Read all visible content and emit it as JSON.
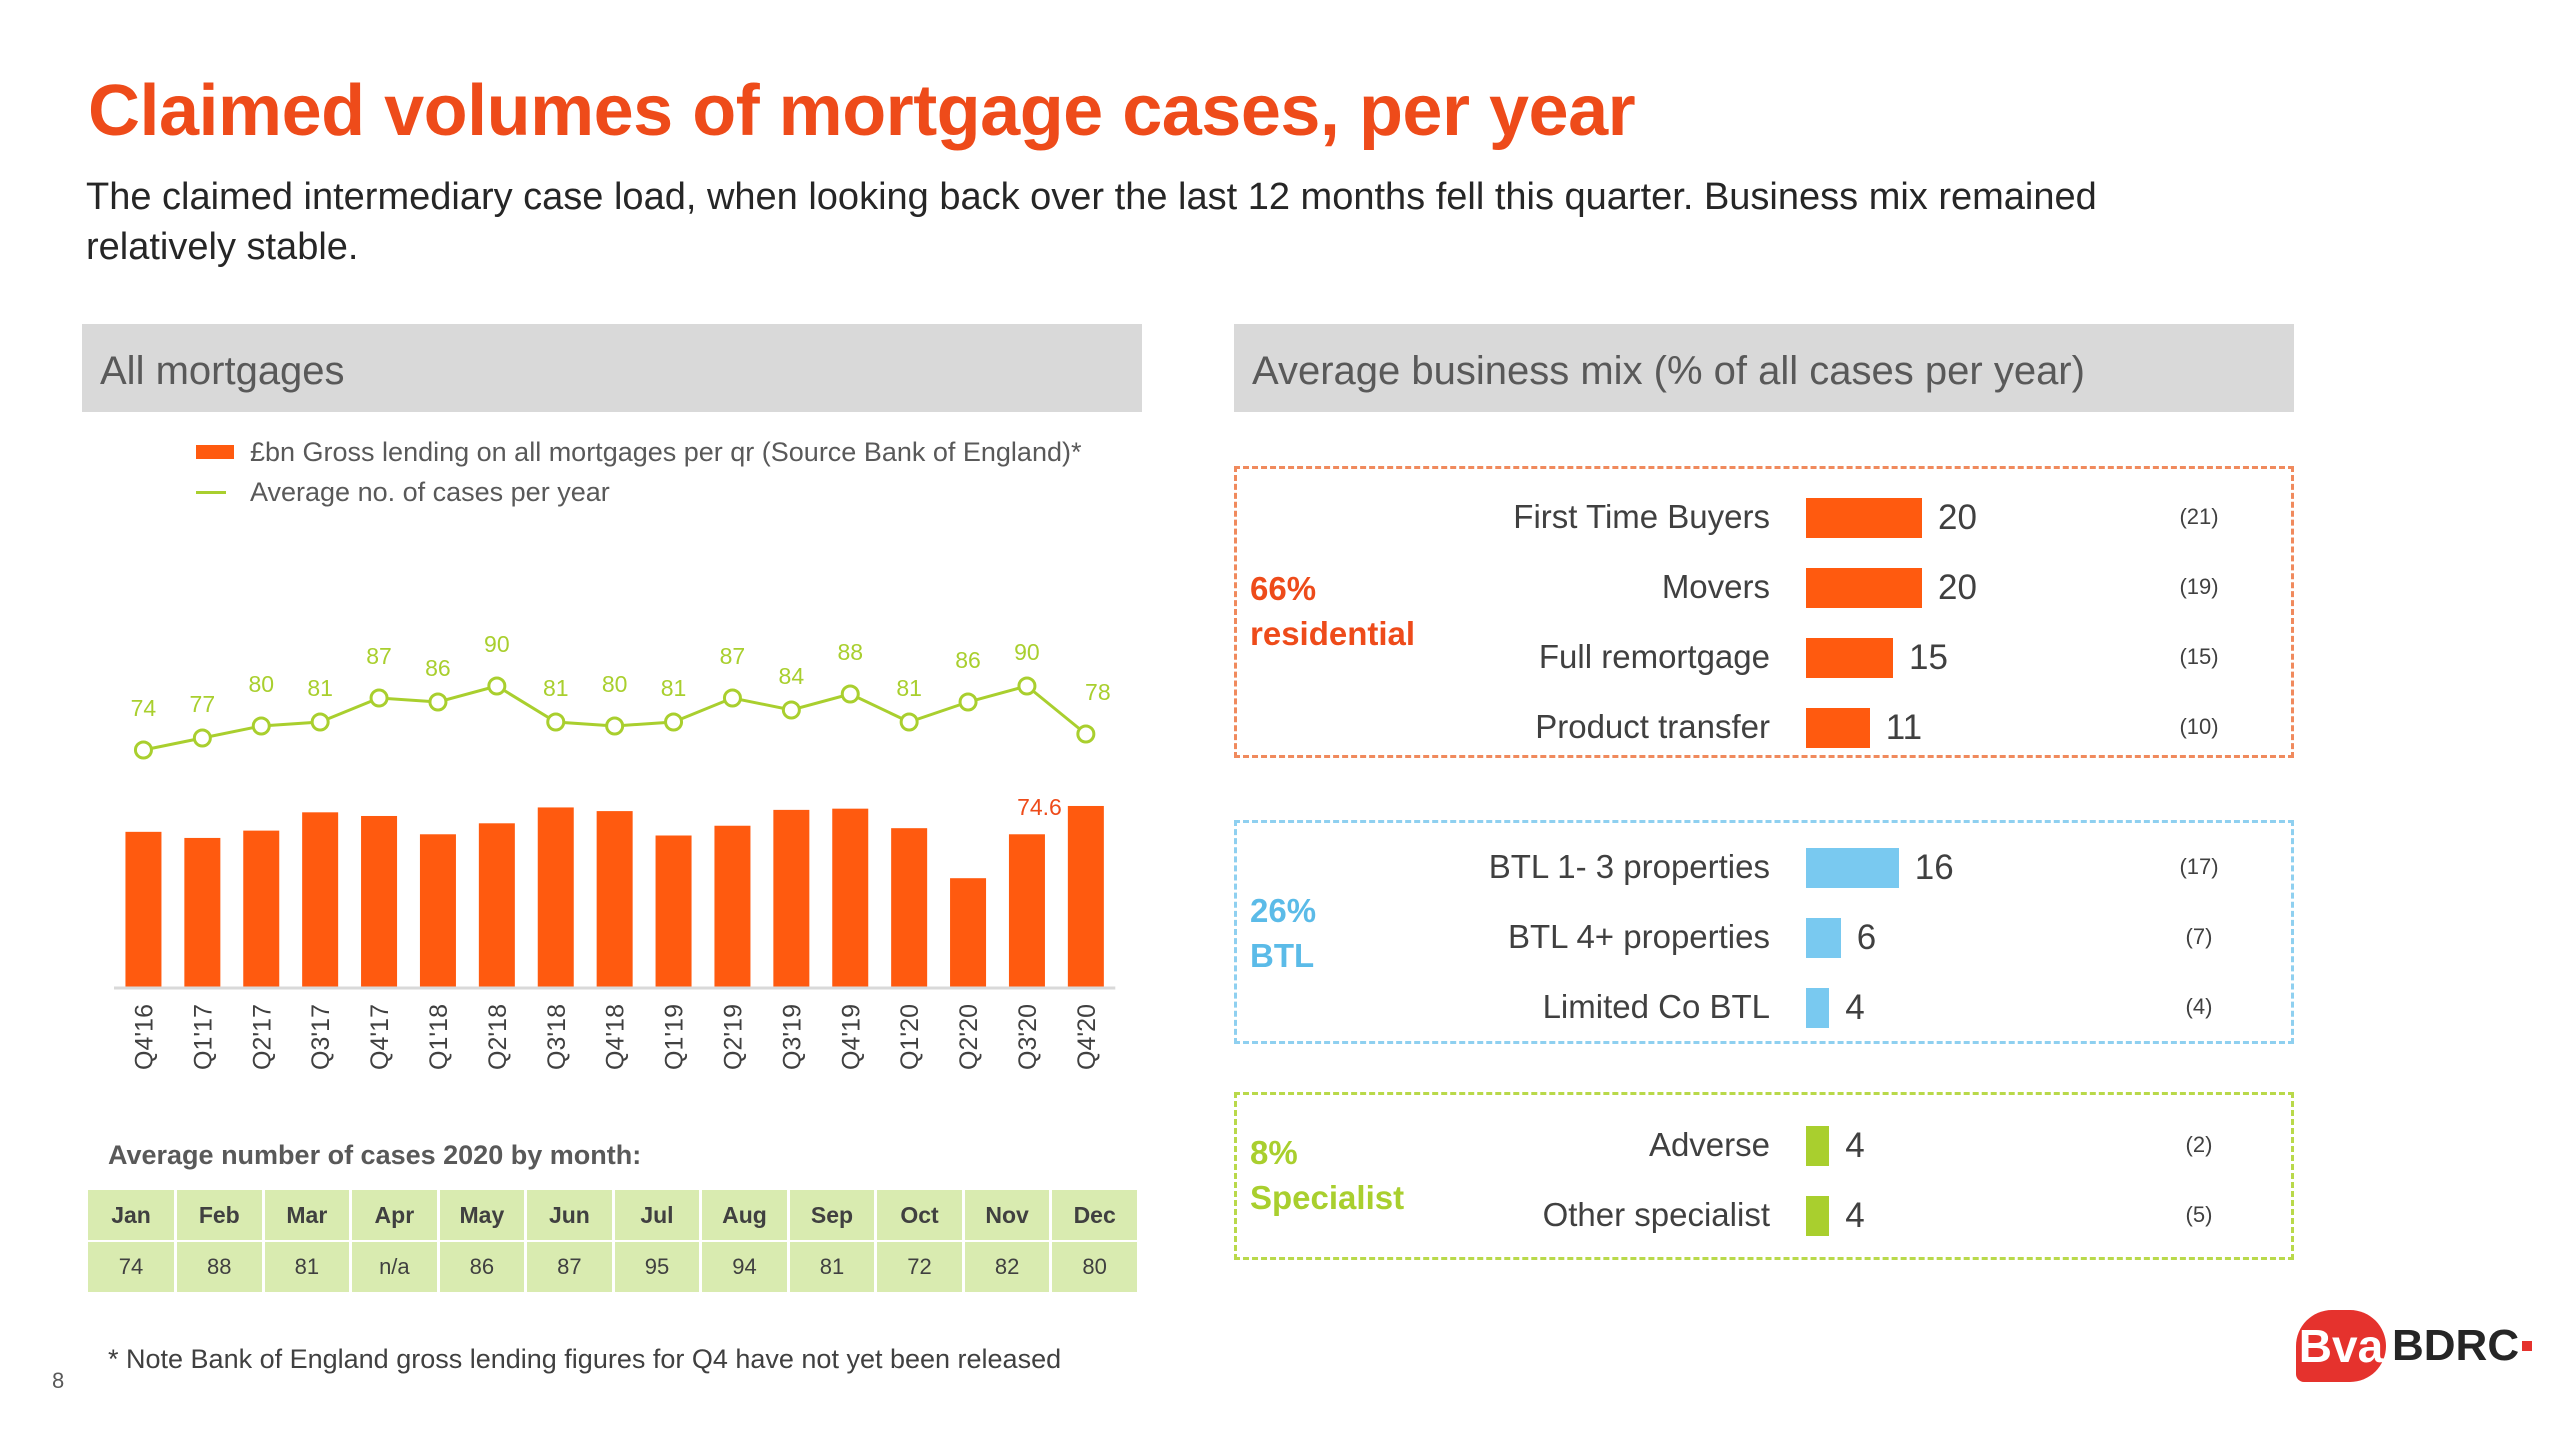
{
  "title": "Claimed volumes of mortgage cases, per year",
  "subtitle": "The claimed intermediary case load, when looking back over the last 12 months fell this quarter. Business mix remained relatively stable.",
  "left_panel": {
    "heading": "All mortgages"
  },
  "right_panel": {
    "heading": "Average business mix (% of all cases per year)"
  },
  "legend": {
    "bar": "£bn Gross lending on all mortgages per qr (Source Bank of England)*",
    "line": "Average no. of cases per year"
  },
  "colors": {
    "accent": "#ee4b1a",
    "bar": "#ff5a0f",
    "line": "#a9cf2e",
    "btl": "#79c9f0",
    "specialist": "#a9cf2e"
  },
  "chart_data": [
    {
      "type": "bar",
      "categories": [
        "Q4'16",
        "Q1'17",
        "Q2'17",
        "Q3'17",
        "Q4'17",
        "Q1'18",
        "Q2'18",
        "Q3'18",
        "Q4'18",
        "Q1'19",
        "Q2'19",
        "Q3'19",
        "Q4'19",
        "Q1'20",
        "Q2'20",
        "Q3'20",
        "Q4'20"
      ],
      "series": [
        {
          "name": "£bn Gross lending on all mortgages per qr (Source Bank of England)*",
          "type": "bar",
          "values": [
            64,
            61.5,
            64.5,
            72,
            70.5,
            63,
            67.5,
            74,
            72.5,
            62.5,
            66.5,
            73,
            73.5,
            65.5,
            45,
            63,
            74.6
          ],
          "labels": [
            "",
            "",
            "",
            "",
            "",
            "",
            "",
            "",
            "",
            "",
            "",
            "",
            "",
            "",
            "",
            "",
            "74.6"
          ]
        },
        {
          "name": "Average no. of cases per year",
          "type": "line",
          "values": [
            74,
            77,
            80,
            81,
            87,
            86,
            90,
            81,
            80,
            81,
            87,
            84,
            88,
            81,
            86,
            90,
            78
          ]
        }
      ],
      "ylim": [
        0,
        110
      ],
      "grid": false,
      "legend": "top-left"
    },
    {
      "type": "table",
      "title": "Average number of cases 2020 by month:",
      "columns": [
        "Jan",
        "Feb",
        "Mar",
        "Apr",
        "May",
        "Jun",
        "Jul",
        "Aug",
        "Sep",
        "Oct",
        "Nov",
        "Dec"
      ],
      "values": [
        "74",
        "88",
        "81",
        "n/a",
        "86",
        "87",
        "95",
        "94",
        "81",
        "72",
        "82",
        "80"
      ]
    },
    {
      "type": "bar",
      "orientation": "horizontal",
      "groups": [
        {
          "label": "66% residential",
          "color": "#ff5a0f",
          "items": [
            {
              "category": "First Time Buyers",
              "value": 20,
              "previous": "(21)"
            },
            {
              "category": "Movers",
              "value": 20,
              "previous": "(19)"
            },
            {
              "category": "Full remortgage",
              "value": 15,
              "previous": "(15)"
            },
            {
              "category": "Product transfer",
              "value": 11,
              "previous": "(10)"
            }
          ]
        },
        {
          "label": "26% BTL",
          "color": "#79c9f0",
          "items": [
            {
              "category": "BTL 1- 3 properties",
              "value": 16,
              "previous": "(17)"
            },
            {
              "category": "BTL 4+ properties",
              "value": 6,
              "previous": "(7)"
            },
            {
              "category": "Limited Co BTL",
              "value": 4,
              "previous": "(4)"
            }
          ]
        },
        {
          "label": "8% Specialist",
          "color": "#a9cf2e",
          "items": [
            {
              "category": "Adverse",
              "value": 4,
              "previous": "(2)"
            },
            {
              "category": "Other specialist",
              "value": 4,
              "previous": "(5)"
            }
          ]
        }
      ]
    }
  ],
  "footnote": "* Note Bank of England gross lending figures for Q4 have not yet been released",
  "page_number": "8",
  "logo": {
    "mark": "Bva",
    "text": "BDRC"
  }
}
